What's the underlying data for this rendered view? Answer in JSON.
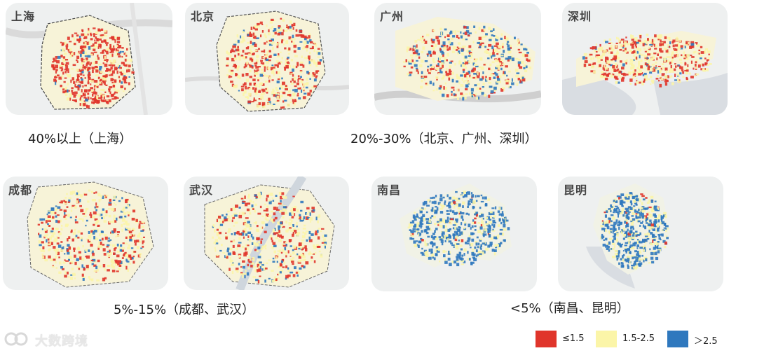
{
  "maps": [
    {
      "id": "shanghai",
      "title": "上海",
      "scheme": "red"
    },
    {
      "id": "beijing",
      "title": "北京",
      "scheme": "redyellow"
    },
    {
      "id": "guangzhou",
      "title": "广州",
      "scheme": "mixed"
    },
    {
      "id": "shenzhen",
      "title": "深圳",
      "scheme": "redyellow"
    },
    {
      "id": "chengdu",
      "title": "成都",
      "scheme": "mixed"
    },
    {
      "id": "wuhan",
      "title": "武汉",
      "scheme": "mixed"
    },
    {
      "id": "nanchang",
      "title": "南昌",
      "scheme": "blue"
    },
    {
      "id": "kunming",
      "title": "昆明",
      "scheme": "blue"
    }
  ],
  "captions": {
    "group1": "40%以上（上海）",
    "group2": "20%-30%（北京、广州、深圳）",
    "group3": "5%-15%（成都、武汉）",
    "group4": "<5%（南昌、昆明）"
  },
  "legend": [
    {
      "label": "≤1.5",
      "color": "#e0352b"
    },
    {
      "label": "1.5-2.5",
      "color": "#fbf5a8"
    },
    {
      "label": "＞2.5",
      "color": "#2f78be"
    }
  ],
  "watermark": {
    "text": "大数跨境",
    "logo": "brand-logo-icon"
  }
}
